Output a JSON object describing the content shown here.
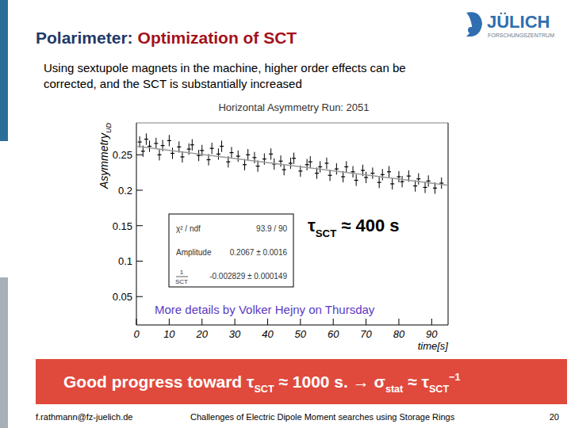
{
  "slide": {
    "title": [
      "Polarimeter:",
      "Optimization of SCT"
    ],
    "subtitle": [
      "Using sextupole magnets in the machine, higher order effects can be",
      "corrected, and the SCT is substantially increased"
    ],
    "logo": {
      "name": "JÜLICH",
      "sub": "FORSCHUNGSZENTRUM"
    },
    "note": "More details by Volker Hejny on Thursday",
    "banner": [
      {
        "t": "Good progress toward "
      },
      {
        "t": "τ",
        "sub": "SCT"
      },
      {
        "t": " ≈ 1000 s. → "
      },
      {
        "t": "σ",
        "sub": "stat"
      },
      {
        "t": " ≈ "
      },
      {
        "t": "τ",
        "sub": "SCT",
        "sup": "−1"
      }
    ],
    "footer": {
      "email": "f.rathmann@fz-juelich.de",
      "talk": "Challenges of Electric Dipole Moment searches using Storage Rings",
      "page": 20
    }
  },
  "chart_data": {
    "type": "scatter",
    "title": "Horizontal Asymmetry Run: 2051",
    "xlabel": "time[s]",
    "ylabel": {
      "text": "Asymmetry",
      "sub": "UD"
    },
    "xlim": [
      0,
      95
    ],
    "ylim": [
      0.01,
      0.295
    ],
    "xticks": [
      0,
      10,
      20,
      30,
      40,
      50,
      60,
      70,
      80,
      90
    ],
    "yticks": [
      0.05,
      0.1,
      0.15,
      0.2,
      0.25
    ],
    "grid": false,
    "series": [
      {
        "type": "scatter",
        "marker": "plus",
        "color": "#000000",
        "x": [
          1,
          2,
          3,
          4,
          6,
          7,
          8,
          10,
          11,
          13,
          14,
          16,
          17,
          19,
          20,
          22,
          23,
          25,
          26,
          28,
          29,
          31,
          33,
          34,
          36,
          37,
          39,
          41,
          42,
          44,
          45,
          47,
          48,
          50,
          52,
          53,
          55,
          56,
          58,
          59,
          61,
          63,
          64,
          66,
          67,
          69,
          70,
          72,
          74,
          75,
          77,
          78,
          80,
          81,
          83,
          85,
          86,
          88,
          89,
          91,
          93
        ],
        "values": [
          0.268,
          0.255,
          0.272,
          0.262,
          0.266,
          0.25,
          0.263,
          0.27,
          0.252,
          0.261,
          0.247,
          0.258,
          0.264,
          0.249,
          0.256,
          0.243,
          0.259,
          0.251,
          0.262,
          0.24,
          0.253,
          0.248,
          0.236,
          0.25,
          0.246,
          0.234,
          0.244,
          0.251,
          0.237,
          0.241,
          0.229,
          0.238,
          0.245,
          0.227,
          0.236,
          0.24,
          0.224,
          0.233,
          0.238,
          0.221,
          0.23,
          0.219,
          0.233,
          0.226,
          0.214,
          0.228,
          0.218,
          0.224,
          0.211,
          0.222,
          0.226,
          0.209,
          0.219,
          0.212,
          0.22,
          0.206,
          0.216,
          0.204,
          0.213,
          0.203,
          0.21
        ],
        "errors": [
          0.008,
          0.008,
          0.008,
          0.008,
          0.008,
          0.008,
          0.008,
          0.008,
          0.008,
          0.008,
          0.008,
          0.008,
          0.008,
          0.008,
          0.008,
          0.008,
          0.008,
          0.008,
          0.008,
          0.008,
          0.008,
          0.008,
          0.008,
          0.008,
          0.008,
          0.008,
          0.008,
          0.008,
          0.008,
          0.008,
          0.008,
          0.008,
          0.008,
          0.008,
          0.008,
          0.008,
          0.008,
          0.008,
          0.008,
          0.008,
          0.008,
          0.008,
          0.008,
          0.008,
          0.008,
          0.008,
          0.008,
          0.008,
          0.008,
          0.008,
          0.008,
          0.008,
          0.008,
          0.008,
          0.008,
          0.008,
          0.008,
          0.008,
          0.008,
          0.008,
          0.008
        ]
      },
      {
        "type": "line",
        "line_style": "solid",
        "color": "#999999",
        "x": [
          0,
          95
        ],
        "values": [
          0.262,
          0.207
        ]
      }
    ],
    "fit_box": [
      {
        "label": "χ² / ndf",
        "value": "93.9 / 90"
      },
      {
        "label": "Amplitude",
        "value": "0.2067 ± 0.0016"
      },
      {
        "num": "1",
        "den": "SCT",
        "value": "-0.002829 ± 0.000149"
      }
    ],
    "annotation": [
      {
        "t": "τ",
        "sub": "SCT"
      },
      {
        "t": " ≈ 400 s"
      }
    ]
  }
}
